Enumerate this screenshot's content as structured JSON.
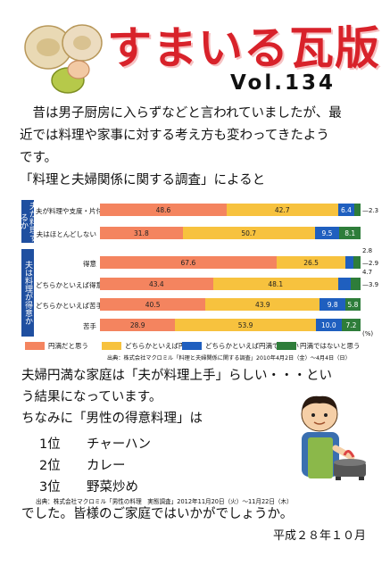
{
  "header": {
    "title": "すまいる瓦版",
    "volume": "Vol.134"
  },
  "intro": {
    "line1": "　昔は男子厨房に入らずなどと言われていましたが、最",
    "line2": "近では料理や家事に対する考え方も変わってきたよう",
    "line3": "です。",
    "line4": "「料理と夫婦関係に関する調査」によると"
  },
  "chart_data": {
    "type": "bar",
    "stacked": true,
    "unit": "(%)",
    "groups": [
      {
        "label": "夫が料理するか",
        "rows": [
          0,
          1
        ]
      },
      {
        "label": "夫は料理が得意か",
        "rows": [
          2,
          3,
          4,
          5
        ]
      }
    ],
    "categories": [
      "夫が料理や支度・片付けをする",
      "夫はほとんどしない",
      "得意",
      "どちらかといえば得意",
      "どちらかといえば苦手",
      "苦手"
    ],
    "series": [
      {
        "name": "円満だと思う",
        "color": "#f4845f",
        "values": [
          48.6,
          31.8,
          67.6,
          43.4,
          40.5,
          28.9
        ]
      },
      {
        "name": "どちらかといえば円満",
        "color": "#f7c23e",
        "values": [
          42.7,
          50.7,
          26.5,
          48.1,
          43.9,
          53.9
        ]
      },
      {
        "name": "どちらかといえば円満ではない",
        "color": "#1f5fbf",
        "values": [
          6.4,
          9.5,
          2.8,
          4.7,
          9.8,
          10.0
        ]
      },
      {
        "name": "円満ではないと思う",
        "color": "#2e7d3a",
        "values": [
          2.3,
          8.1,
          2.9,
          3.9,
          5.8,
          7.2
        ]
      }
    ],
    "source": "出典：株式会社マクロミル「料理と夫婦関係に関する調査」2010年4月2日（金）～4月4日（日）"
  },
  "body": {
    "line1": "夫婦円満な家庭は「夫が料理上手」らしい・・・とい",
    "line2": "う結果になっています。",
    "line3": "ちなみに「男性の得意料理」は",
    "ranking": [
      {
        "rank": "1位",
        "dish": "チャーハン"
      },
      {
        "rank": "2位",
        "dish": "カレー"
      },
      {
        "rank": "3位",
        "dish": "野菜炒め"
      }
    ],
    "source2": "出典：株式会社マクロミル「男性の料理　実態調査」2012年11月20日（火）～11月22日（木）",
    "closing": "でした。皆様のご家庭ではいかがでしょうか。",
    "date": "平成２８年１０月"
  }
}
